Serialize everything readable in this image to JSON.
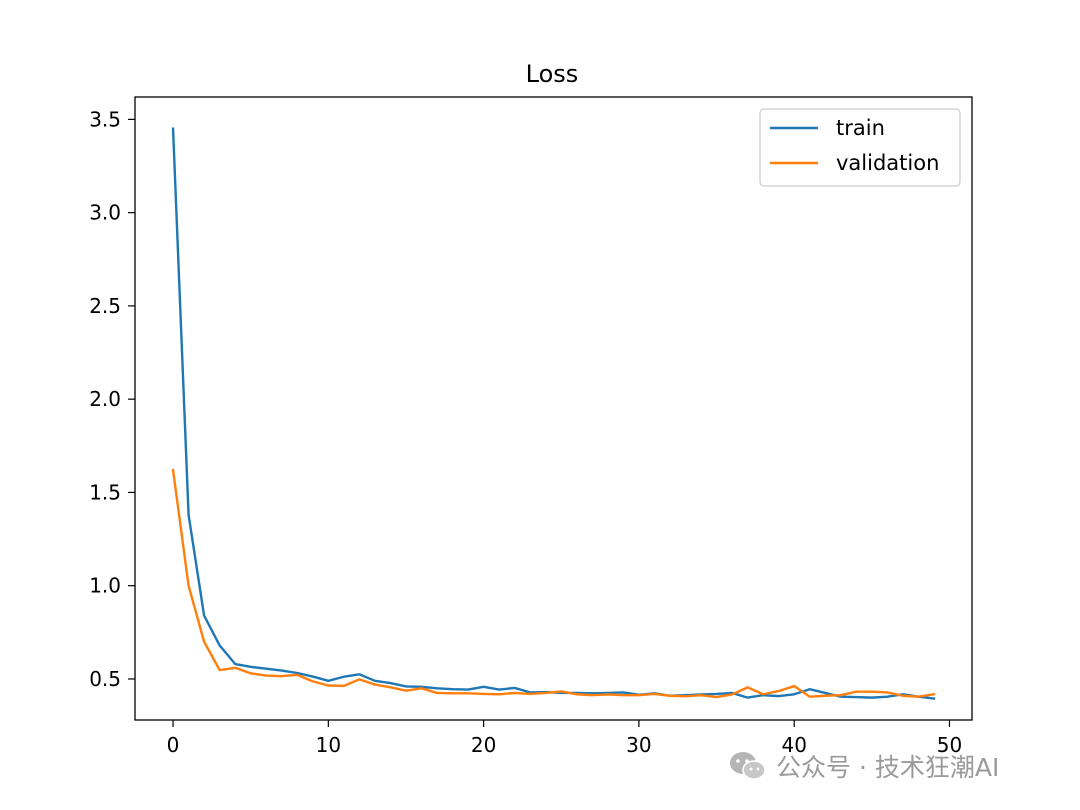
{
  "chart_data": {
    "type": "line",
    "title": "Loss",
    "xlabel": "",
    "ylabel": "",
    "xlim": [
      -2.45,
      51.45
    ],
    "ylim": [
      0.28,
      3.62
    ],
    "xticks": [
      0,
      10,
      20,
      30,
      40,
      50
    ],
    "yticks": [
      0.5,
      1.0,
      1.5,
      2.0,
      2.5,
      3.0,
      3.5
    ],
    "ytick_labels": [
      "0.5",
      "1.0",
      "1.5",
      "2.0",
      "2.5",
      "3.0",
      "3.5"
    ],
    "legend_position": "upper-right",
    "grid": false,
    "series": [
      {
        "name": "train",
        "color": "#1f77b4",
        "x": [
          0,
          1,
          2,
          3,
          4,
          5,
          6,
          7,
          8,
          9,
          10,
          11,
          12,
          13,
          14,
          15,
          16,
          17,
          18,
          19,
          20,
          21,
          22,
          23,
          24,
          25,
          26,
          27,
          28,
          29,
          30,
          31,
          32,
          33,
          34,
          35,
          36,
          37,
          38,
          39,
          40,
          41,
          42,
          43,
          44,
          45,
          46,
          47,
          48,
          49
        ],
        "values": [
          3.45,
          1.38,
          0.84,
          0.68,
          0.58,
          0.565,
          0.555,
          0.545,
          0.532,
          0.513,
          0.49,
          0.512,
          0.525,
          0.49,
          0.478,
          0.46,
          0.458,
          0.45,
          0.445,
          0.443,
          0.458,
          0.443,
          0.452,
          0.428,
          0.43,
          0.425,
          0.425,
          0.423,
          0.425,
          0.428,
          0.415,
          0.423,
          0.41,
          0.413,
          0.417,
          0.42,
          0.425,
          0.4,
          0.413,
          0.408,
          0.418,
          0.445,
          0.425,
          0.405,
          0.403,
          0.4,
          0.405,
          0.418,
          0.405,
          0.395
        ]
      },
      {
        "name": "validation",
        "color": "#ff7f0e",
        "x": [
          0,
          1,
          2,
          3,
          4,
          5,
          6,
          7,
          8,
          9,
          10,
          11,
          12,
          13,
          14,
          15,
          16,
          17,
          18,
          19,
          20,
          21,
          22,
          23,
          24,
          25,
          26,
          27,
          28,
          29,
          30,
          31,
          32,
          33,
          34,
          35,
          36,
          37,
          38,
          39,
          40,
          41,
          42,
          43,
          44,
          45,
          46,
          47,
          48,
          49
        ],
        "values": [
          1.62,
          1.0,
          0.7,
          0.548,
          0.56,
          0.53,
          0.518,
          0.515,
          0.522,
          0.487,
          0.465,
          0.463,
          0.498,
          0.47,
          0.455,
          0.437,
          0.45,
          0.425,
          0.423,
          0.423,
          0.42,
          0.418,
          0.425,
          0.42,
          0.425,
          0.433,
          0.418,
          0.413,
          0.417,
          0.413,
          0.413,
          0.42,
          0.41,
          0.407,
          0.413,
          0.403,
          0.417,
          0.455,
          0.418,
          0.435,
          0.462,
          0.405,
          0.41,
          0.413,
          0.432,
          0.432,
          0.428,
          0.41,
          0.405,
          0.418
        ]
      }
    ]
  },
  "watermark": {
    "icon": "wechat-icon",
    "text": "公众号 · 技术狂潮AI"
  }
}
